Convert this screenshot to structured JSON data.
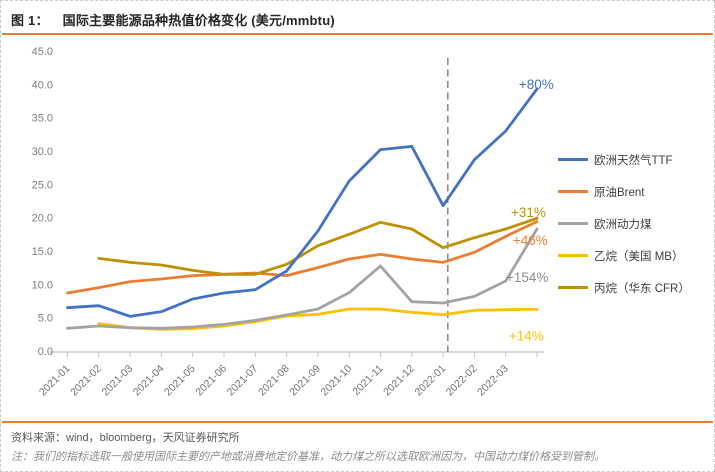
{
  "figure": {
    "label": "图 1：",
    "title": "国际主要能源品种热值价格变化 (美元/mmbtu)"
  },
  "chart_data": {
    "type": "line",
    "title": "国际主要能源品种热值价格变化 (美元/mmbtu)",
    "xlabel": "",
    "ylabel": "",
    "ylim": [
      0,
      45
    ],
    "ytick_step": 5,
    "grid": false,
    "legend_position": "right",
    "categories": [
      "2021-01",
      "2021-02",
      "2021-03",
      "2021-04",
      "2021-05",
      "2021-06",
      "2021-07",
      "2021-08",
      "2021-09",
      "2021-10",
      "2021-11",
      "2021-12",
      "2022-01",
      "2022-02",
      "2022-03"
    ],
    "x_note": "lines extend one unlabeled interval past the 2022-03 tick (latest reading)",
    "series": [
      {
        "name": "欧洲天然气TTF",
        "color": "#4472C4",
        "values": [
          6.5,
          6.8,
          5.2,
          5.9,
          7.8,
          8.7,
          9.2,
          12.0,
          18.0,
          25.5,
          30.2,
          30.7,
          21.8,
          28.7,
          33.0,
          39.3
        ],
        "change_label": "+80%"
      },
      {
        "name": "原油Brent",
        "color": "#ED7D31",
        "values": [
          8.7,
          9.5,
          10.4,
          10.8,
          11.3,
          11.5,
          11.7,
          11.3,
          12.5,
          13.8,
          14.5,
          13.8,
          13.3,
          14.8,
          17.2,
          19.4
        ],
        "change_label": "+46%"
      },
      {
        "name": "欧洲动力煤",
        "color": "#A3A3A3",
        "values": [
          3.4,
          3.75,
          3.5,
          3.4,
          3.6,
          4.0,
          4.6,
          5.4,
          6.3,
          8.75,
          12.75,
          7.4,
          7.2,
          8.2,
          10.5,
          18.3
        ],
        "change_label": "+154%"
      },
      {
        "name": "乙烷（美国 MB）",
        "color": "#FFC000",
        "values": [
          null,
          4.1,
          3.5,
          3.25,
          3.35,
          3.75,
          4.4,
          5.25,
          5.5,
          6.3,
          6.3,
          5.8,
          5.45,
          6.1,
          6.2,
          6.25
        ],
        "change_label": "+14%"
      },
      {
        "name": "丙烷（华东 CFR）",
        "color": "#BF9000",
        "values": [
          null,
          13.9,
          13.3,
          12.9,
          12.1,
          11.5,
          11.5,
          13.0,
          15.8,
          17.5,
          19.3,
          18.3,
          15.5,
          17.0,
          18.3,
          19.9
        ],
        "change_label": "+31%"
      }
    ],
    "dashed_vline": {
      "at_index": 12.15,
      "color": "#8c8c8c",
      "style": "dashed"
    },
    "annotations": [
      {
        "text": "+80%",
        "color": "#4472C4",
        "xi": 14.42,
        "v": 39.3
      },
      {
        "text": "+31%",
        "color": "#BF9000",
        "xi": 14.17,
        "v": 20.1
      },
      {
        "text": "+46%",
        "color": "#ED7D31",
        "xi": 14.23,
        "v": 15.9
      },
      {
        "text": "+154%",
        "color": "#8c8c8c",
        "xi": 14.01,
        "v": 10.35
      },
      {
        "text": "+14%",
        "color": "#FFC000",
        "xi": 14.1,
        "v": 1.6
      }
    ]
  },
  "source": {
    "text": "资料来源：wind，bloomberg，天风证券研究所"
  },
  "note": {
    "text": "注：我们的指标选取一般使用国际主要的产地或消费地定价基准，动力煤之所以选取欧洲因为，中国动力煤价格受到管制。"
  }
}
